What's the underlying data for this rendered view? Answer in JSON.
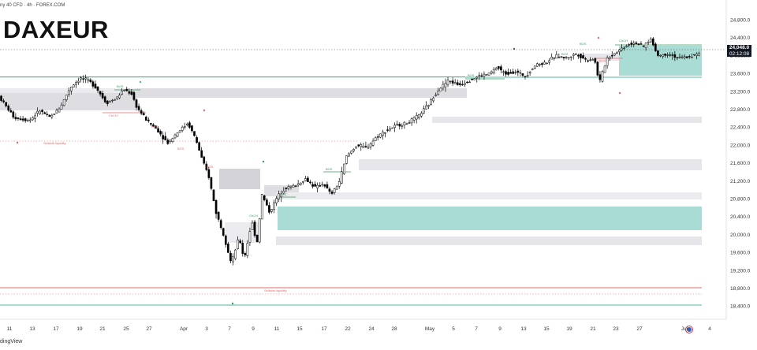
{
  "header": {
    "ticker": "DAXEUR",
    "instrument": "ny 40 CFD · 4h · FOREX.COM"
  },
  "footer": {
    "watermark": "dingView"
  },
  "current_price": {
    "price": "24,048.0",
    "countdown": "02:12:08"
  },
  "colors": {
    "bull": "#000000",
    "bear": "#000000",
    "grey_zone": "#dedee2",
    "teal_zone": "#a9dcd5",
    "teal_line": "#4fb5a2",
    "red_line": "#e06b6b",
    "green_bos": "#3f9a5a",
    "dark_line": "#333333"
  },
  "chart_data": {
    "type": "candlestick",
    "timeframe": "4h",
    "ylim": [
      18200,
      24950
    ],
    "x_ticks": [
      "11",
      "13",
      "17",
      "19",
      "21",
      "25",
      "27",
      "Apr",
      "3",
      "7",
      "9",
      "11",
      "15",
      "17",
      "22",
      "24",
      "28",
      "May",
      "5",
      "7",
      "9",
      "13",
      "15",
      "19",
      "21",
      "23",
      "27",
      "Jun",
      "4"
    ],
    "y_ticks": [
      "24,800.0",
      "24,400.0",
      "24,000.0",
      "23,600.0",
      "23,200.0",
      "22,800.0",
      "22,400.0",
      "22,000.0",
      "21,600.0",
      "21,200.0",
      "20,800.0",
      "20,400.0",
      "20,000.0",
      "19,600.0",
      "19,200.0",
      "18,800.0",
      "18,400.0"
    ],
    "price_path": [
      {
        "t": 0,
        "p": 23100
      },
      {
        "t": 3,
        "p": 22620
      },
      {
        "t": 6,
        "p": 22560
      },
      {
        "t": 8,
        "p": 22780
      },
      {
        "t": 10,
        "p": 22620
      },
      {
        "t": 12,
        "p": 22850
      },
      {
        "t": 14,
        "p": 23300
      },
      {
        "t": 16,
        "p": 23500
      },
      {
        "t": 17.5,
        "p": 23450
      },
      {
        "t": 19,
        "p": 23300
      },
      {
        "t": 21,
        "p": 22950
      },
      {
        "t": 23,
        "p": 23050
      },
      {
        "t": 24.5,
        "p": 23250
      },
      {
        "t": 26,
        "p": 23150
      },
      {
        "t": 27,
        "p": 22850
      },
      {
        "t": 29,
        "p": 22550
      },
      {
        "t": 31,
        "p": 22350
      },
      {
        "t": 33,
        "p": 22050
      },
      {
        "t": 35,
        "p": 22300
      },
      {
        "t": 37,
        "p": 22500
      },
      {
        "t": 38.5,
        "p": 22150
      },
      {
        "t": 40,
        "p": 21600
      },
      {
        "t": 41,
        "p": 21350
      },
      {
        "t": 42.5,
        "p": 20500
      },
      {
        "t": 44,
        "p": 20000
      },
      {
        "t": 45.5,
        "p": 19350
      },
      {
        "t": 47,
        "p": 19950
      },
      {
        "t": 48,
        "p": 19450
      },
      {
        "t": 49.5,
        "p": 20300
      },
      {
        "t": 50.5,
        "p": 19800
      },
      {
        "t": 51.5,
        "p": 20900
      },
      {
        "t": 53,
        "p": 20500
      },
      {
        "t": 54.5,
        "p": 20850
      },
      {
        "t": 56,
        "p": 21050
      },
      {
        "t": 58,
        "p": 21100
      },
      {
        "t": 60,
        "p": 21250
      },
      {
        "t": 62,
        "p": 21050
      },
      {
        "t": 63.5,
        "p": 21150
      },
      {
        "t": 65,
        "p": 20900
      },
      {
        "t": 66.5,
        "p": 21150
      },
      {
        "t": 68,
        "p": 21750
      },
      {
        "t": 70,
        "p": 22000
      },
      {
        "t": 72,
        "p": 21950
      },
      {
        "t": 74,
        "p": 22200
      },
      {
        "t": 76,
        "p": 22350
      },
      {
        "t": 78,
        "p": 22450
      },
      {
        "t": 80,
        "p": 22500
      },
      {
        "t": 82,
        "p": 22650
      },
      {
        "t": 84,
        "p": 22900
      },
      {
        "t": 86,
        "p": 23250
      },
      {
        "t": 88,
        "p": 23450
      },
      {
        "t": 90,
        "p": 23350
      },
      {
        "t": 92,
        "p": 23450
      },
      {
        "t": 94,
        "p": 23550
      },
      {
        "t": 96,
        "p": 23600
      },
      {
        "t": 97.5,
        "p": 23750
      },
      {
        "t": 99,
        "p": 23600
      },
      {
        "t": 101,
        "p": 23650
      },
      {
        "t": 103,
        "p": 23550
      },
      {
        "t": 105,
        "p": 23800
      },
      {
        "t": 107,
        "p": 23850
      },
      {
        "t": 109,
        "p": 24000
      },
      {
        "t": 111,
        "p": 23950
      },
      {
        "t": 113,
        "p": 24050
      },
      {
        "t": 115,
        "p": 23900
      },
      {
        "t": 116.5,
        "p": 23950
      },
      {
        "t": 117.5,
        "p": 23400
      },
      {
        "t": 119,
        "p": 23950
      },
      {
        "t": 121,
        "p": 24100
      },
      {
        "t": 123,
        "p": 24250
      },
      {
        "t": 124.5,
        "p": 24300
      },
      {
        "t": 126,
        "p": 24200
      },
      {
        "t": 127.5,
        "p": 24380
      },
      {
        "t": 129,
        "p": 24000
      },
      {
        "t": 131,
        "p": 24050
      },
      {
        "t": 133,
        "p": 23950
      },
      {
        "t": 135,
        "p": 23980
      },
      {
        "t": 137,
        "p": 24048
      }
    ]
  },
  "annotations": {
    "bos": "BOS",
    "chch": "ChCH",
    "sellside": "Sellside liquidity"
  }
}
